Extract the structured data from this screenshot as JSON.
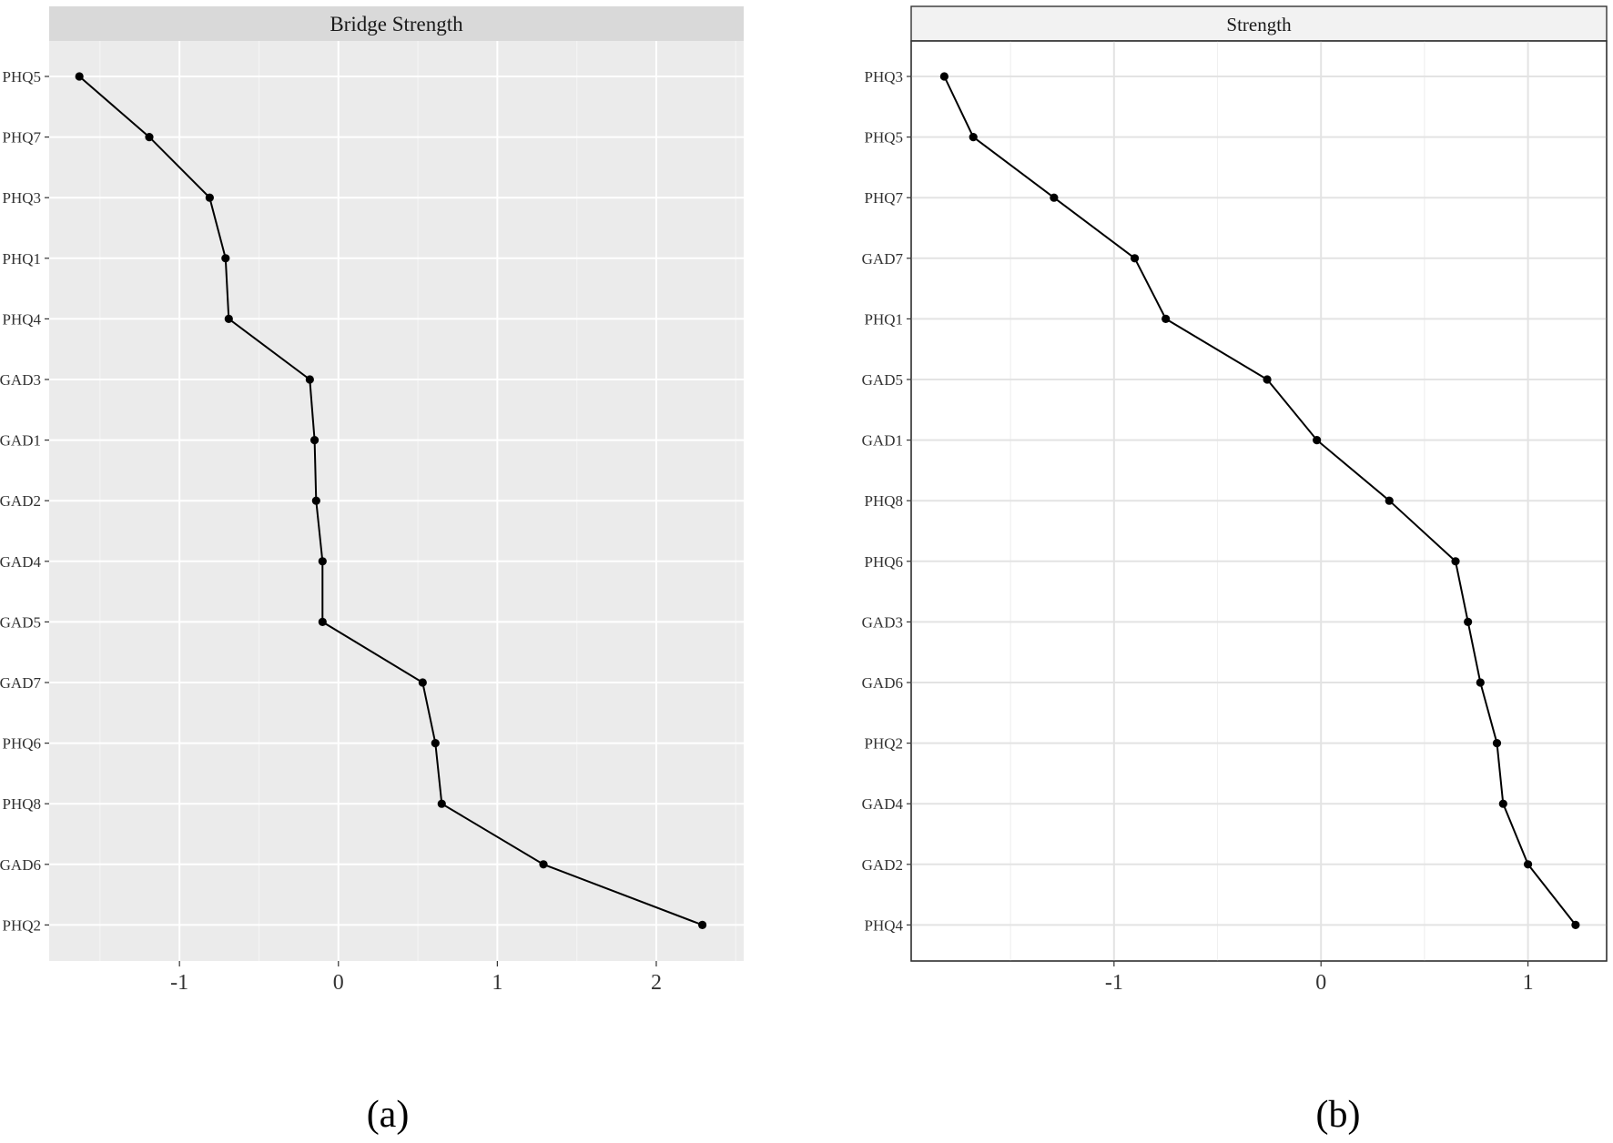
{
  "chart_data": [
    {
      "type": "line",
      "panel": "a",
      "title": "Bridge Strength",
      "caption": "(a)",
      "background": "panel-grey",
      "grid": true,
      "xlim": [
        -1.82,
        2.55
      ],
      "x_ticks": [
        -1,
        0,
        1,
        2
      ],
      "x_tick_labels": [
        "-1",
        "0",
        "1",
        "2"
      ],
      "categories": [
        "PHQ5",
        "PHQ7",
        "PHQ3",
        "PHQ1",
        "PHQ4",
        "GAD3",
        "GAD1",
        "GAD2",
        "GAD4",
        "GAD5",
        "GAD7",
        "PHQ6",
        "PHQ8",
        "GAD6",
        "PHQ2"
      ],
      "values": [
        -1.63,
        -1.19,
        -0.81,
        -0.71,
        -0.69,
        -0.18,
        -0.15,
        -0.14,
        -0.1,
        -0.1,
        0.53,
        0.61,
        0.65,
        1.29,
        2.29
      ]
    },
    {
      "type": "line",
      "panel": "b",
      "title": "Strength",
      "caption": "(b)",
      "background": "white",
      "grid": true,
      "xlim": [
        -1.98,
        1.38
      ],
      "x_ticks": [
        -1,
        0,
        1
      ],
      "x_tick_labels": [
        "-1",
        "0",
        "1"
      ],
      "categories": [
        "PHQ3",
        "PHQ5",
        "PHQ7",
        "GAD7",
        "PHQ1",
        "GAD5",
        "GAD1",
        "PHQ8",
        "PHQ6",
        "GAD3",
        "GAD6",
        "PHQ2",
        "GAD4",
        "GAD2",
        "PHQ4"
      ],
      "values": [
        -1.82,
        -1.68,
        -1.29,
        -0.9,
        -0.75,
        -0.26,
        -0.02,
        0.33,
        0.65,
        0.71,
        0.77,
        0.85,
        0.88,
        1.0,
        1.23
      ]
    }
  ],
  "colors": {
    "panel_a_bg": "#ebebeb",
    "panel_a_strip": "#d9d9d9",
    "panel_b_bg": "#ffffff",
    "panel_b_strip": "#f2f2f2",
    "line": "#000000",
    "grid_major_a": "#ffffff",
    "grid_major_b": "#e3e3e3"
  }
}
